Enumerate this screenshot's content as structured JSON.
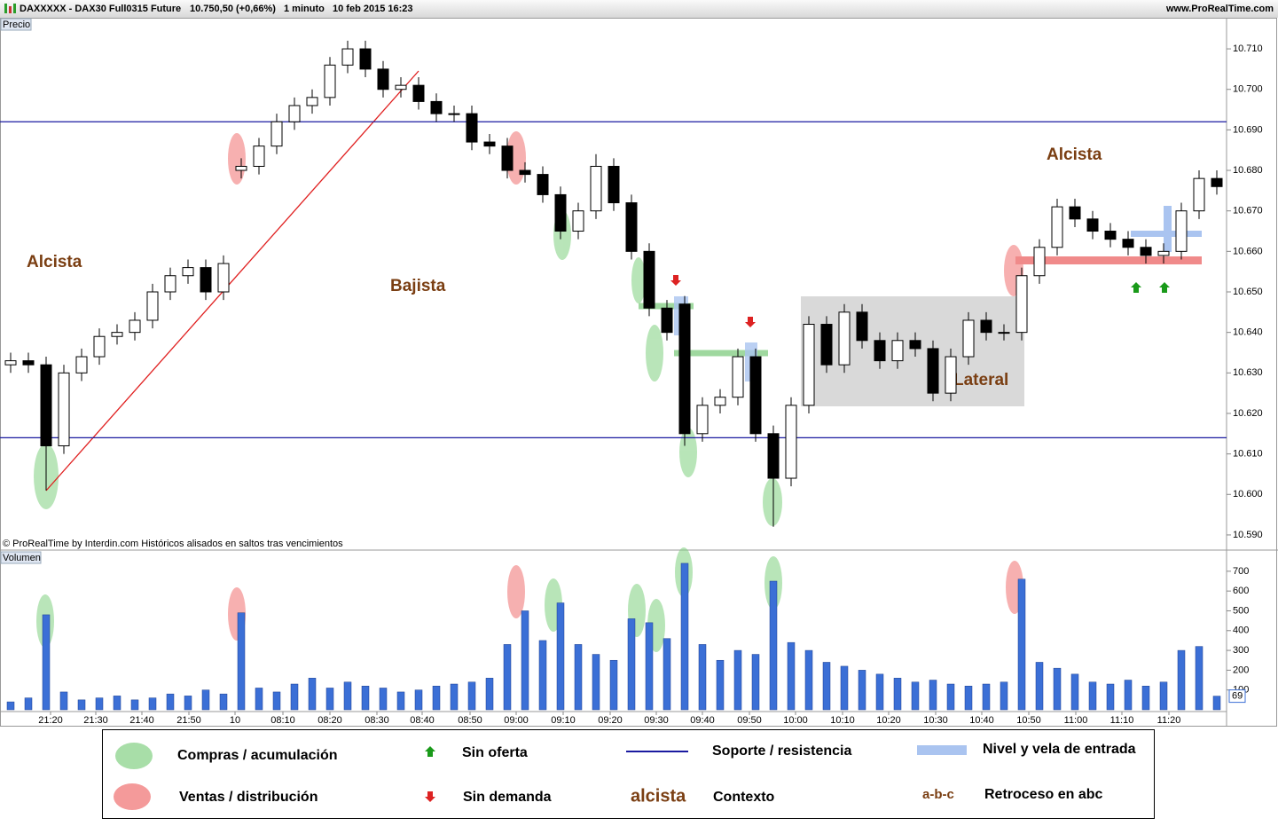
{
  "header": {
    "instrument": "DAXXXXX - DAX30 Full0315 Future",
    "quote": "10.750,50 (+0,66%)",
    "interval": "1 minuto",
    "datetime": "10 feb 2015 16:23",
    "site": "www.ProRealTime.com"
  },
  "chart_data": [
    {
      "type": "candlestick",
      "panel_label": "Precio",
      "footnote": "© ProRealTime by Interdin.com  Históricos alisados en saltos tras vencimientos",
      "annotations": [
        "Alcista",
        "Bajista",
        "Lateral",
        "Alcista"
      ],
      "open": [
        10632,
        10633,
        10632,
        10612,
        10630,
        10634,
        10639,
        10640,
        10643,
        10650,
        10654,
        10656,
        10650,
        10680,
        10681,
        10686,
        10692,
        10696,
        10698,
        10706,
        10710,
        10705,
        10700,
        10701,
        10697,
        10694,
        10694,
        10687,
        10686,
        10680,
        10679,
        10674,
        10665,
        10670,
        10681,
        10672,
        10660,
        10646,
        10647,
        10615,
        10622,
        10624,
        10634,
        10615,
        10604,
        10622,
        10642,
        10632,
        10645,
        10638,
        10633,
        10638,
        10636,
        10625,
        10634,
        10643,
        10640,
        10640,
        10654,
        10661,
        10671,
        10668,
        10665,
        10663,
        10661,
        10659,
        10660,
        10670,
        10678
      ],
      "high": [
        10635,
        10635,
        10634,
        10632,
        10636,
        10641,
        10642,
        10645,
        10652,
        10656,
        10658,
        10658,
        10659,
        10683,
        10688,
        10694,
        10698,
        10700,
        10708,
        10712,
        10712,
        10707,
        10703,
        10703,
        10699,
        10696,
        10696,
        10689,
        10688,
        10682,
        10681,
        10676,
        10672,
        10684,
        10683,
        10674,
        10662,
        10648,
        10649,
        10624,
        10626,
        10636,
        10636,
        10617,
        10624,
        10644,
        10644,
        10647,
        10647,
        10640,
        10640,
        10640,
        10638,
        10636,
        10645,
        10645,
        10642,
        10656,
        10663,
        10673,
        10673,
        10670,
        10667,
        10665,
        10663,
        10662,
        10672,
        10680,
        10680
      ],
      "low": [
        10630,
        10630,
        10601,
        10610,
        10628,
        10632,
        10637,
        10638,
        10641,
        10648,
        10652,
        10648,
        10648,
        10678,
        10679,
        10684,
        10690,
        10694,
        10696,
        10704,
        10703,
        10698,
        10698,
        10695,
        10692,
        10692,
        10685,
        10684,
        10678,
        10677,
        10672,
        10663,
        10663,
        10668,
        10670,
        10658,
        10644,
        10638,
        10612,
        10613,
        10620,
        10622,
        10613,
        10592,
        10602,
        10620,
        10630,
        10630,
        10636,
        10631,
        10631,
        10634,
        10623,
        10623,
        10632,
        10638,
        10638,
        10638,
        10652,
        10659,
        10666,
        10663,
        10661,
        10659,
        10657,
        10657,
        10658,
        10668,
        10674
      ],
      "close": [
        10633,
        10632,
        10612,
        10630,
        10634,
        10639,
        10640,
        10643,
        10650,
        10654,
        10656,
        10650,
        10657,
        10681,
        10686,
        10692,
        10696,
        10698,
        10706,
        10710,
        10705,
        10700,
        10701,
        10697,
        10694,
        10694,
        10687,
        10686,
        10680,
        10679,
        10674,
        10665,
        10670,
        10681,
        10672,
        10660,
        10646,
        10640,
        10615,
        10622,
        10624,
        10634,
        10615,
        10604,
        10622,
        10642,
        10632,
        10645,
        10638,
        10633,
        10638,
        10636,
        10625,
        10634,
        10643,
        10640,
        10640,
        10654,
        10661,
        10671,
        10668,
        10665,
        10663,
        10661,
        10659,
        10660,
        10670,
        10678,
        10676
      ],
      "levels": [
        10692,
        10614
      ],
      "ylim": [
        10586.7,
        10717.9
      ],
      "yticks": [
        {
          "value": 10590,
          "label": "10.590"
        },
        {
          "value": 10600,
          "label": "10.600"
        },
        {
          "value": 10610,
          "label": "10.610"
        },
        {
          "value": 10620,
          "label": "10.620"
        },
        {
          "value": 10630,
          "label": "10.630"
        },
        {
          "value": 10640,
          "label": "10.640"
        },
        {
          "value": 10650,
          "label": "10.650"
        },
        {
          "value": 10660,
          "label": "10.660"
        },
        {
          "value": 10670,
          "label": "10.670"
        },
        {
          "value": 10680,
          "label": "10.680"
        },
        {
          "value": 10690,
          "label": "10.690"
        },
        {
          "value": 10700,
          "label": "10.700"
        },
        {
          "value": 10710,
          "label": "10.710"
        }
      ],
      "xlim": [
        0,
        69
      ]
    },
    {
      "type": "bar",
      "panel_label": "Volumen",
      "color": "#3b6fd6",
      "values": [
        40,
        60,
        480,
        90,
        50,
        60,
        70,
        50,
        60,
        80,
        70,
        100,
        80,
        490,
        110,
        90,
        130,
        160,
        110,
        140,
        120,
        110,
        90,
        100,
        120,
        130,
        140,
        160,
        330,
        500,
        350,
        540,
        330,
        280,
        250,
        460,
        440,
        360,
        740,
        330,
        250,
        300,
        280,
        650,
        340,
        300,
        240,
        220,
        200,
        180,
        160,
        140,
        150,
        130,
        120,
        130,
        140,
        660,
        240,
        210,
        180,
        140,
        130,
        150,
        120,
        140,
        300,
        320,
        69
      ],
      "ylim": [
        0,
        798
      ],
      "yticks": [
        100,
        200,
        300,
        400,
        500,
        600,
        700
      ],
      "xlim": [
        0,
        69
      ],
      "xticks": [
        {
          "value": 2.75,
          "label": "21:20"
        },
        {
          "value": 5.3,
          "label": "21:30"
        },
        {
          "value": 7.9,
          "label": "21:40"
        },
        {
          "value": 10.55,
          "label": "21:50"
        },
        {
          "value": 13.15,
          "label": "10"
        },
        {
          "value": 15.85,
          "label": "08:10"
        },
        {
          "value": 18.5,
          "label": "08:20"
        },
        {
          "value": 21.15,
          "label": "08:30"
        },
        {
          "value": 23.7,
          "label": "08:40"
        },
        {
          "value": 26.4,
          "label": "08:50"
        },
        {
          "value": 29,
          "label": "09:00"
        },
        {
          "value": 31.65,
          "label": "09:10"
        },
        {
          "value": 34.3,
          "label": "09:20"
        },
        {
          "value": 36.9,
          "label": "09:30"
        },
        {
          "value": 39.5,
          "label": "09:40"
        },
        {
          "value": 42.15,
          "label": "09:50"
        },
        {
          "value": 44.75,
          "label": "10:00"
        },
        {
          "value": 47.4,
          "label": "10:10"
        },
        {
          "value": 50,
          "label": "10:20"
        },
        {
          "value": 52.65,
          "label": "10:30"
        },
        {
          "value": 55.25,
          "label": "10:40"
        },
        {
          "value": 57.9,
          "label": "10:50"
        },
        {
          "value": 60.55,
          "label": "11:00"
        },
        {
          "value": 63.15,
          "label": "11:10"
        },
        {
          "value": 65.8,
          "label": "11:20"
        }
      ]
    }
  ],
  "legend": {
    "buy": "Compras / acumulación",
    "sell": "Ventas / distribución",
    "no_supply": "Sin oferta",
    "no_demand": "Sin demanda",
    "support": "Soporte / resistencia",
    "context_word": "alcista",
    "context": "Contexto",
    "entry": "Nivel y vela de entrada",
    "abc": "a-b-c",
    "abc_text": "Retroceso en abc"
  }
}
